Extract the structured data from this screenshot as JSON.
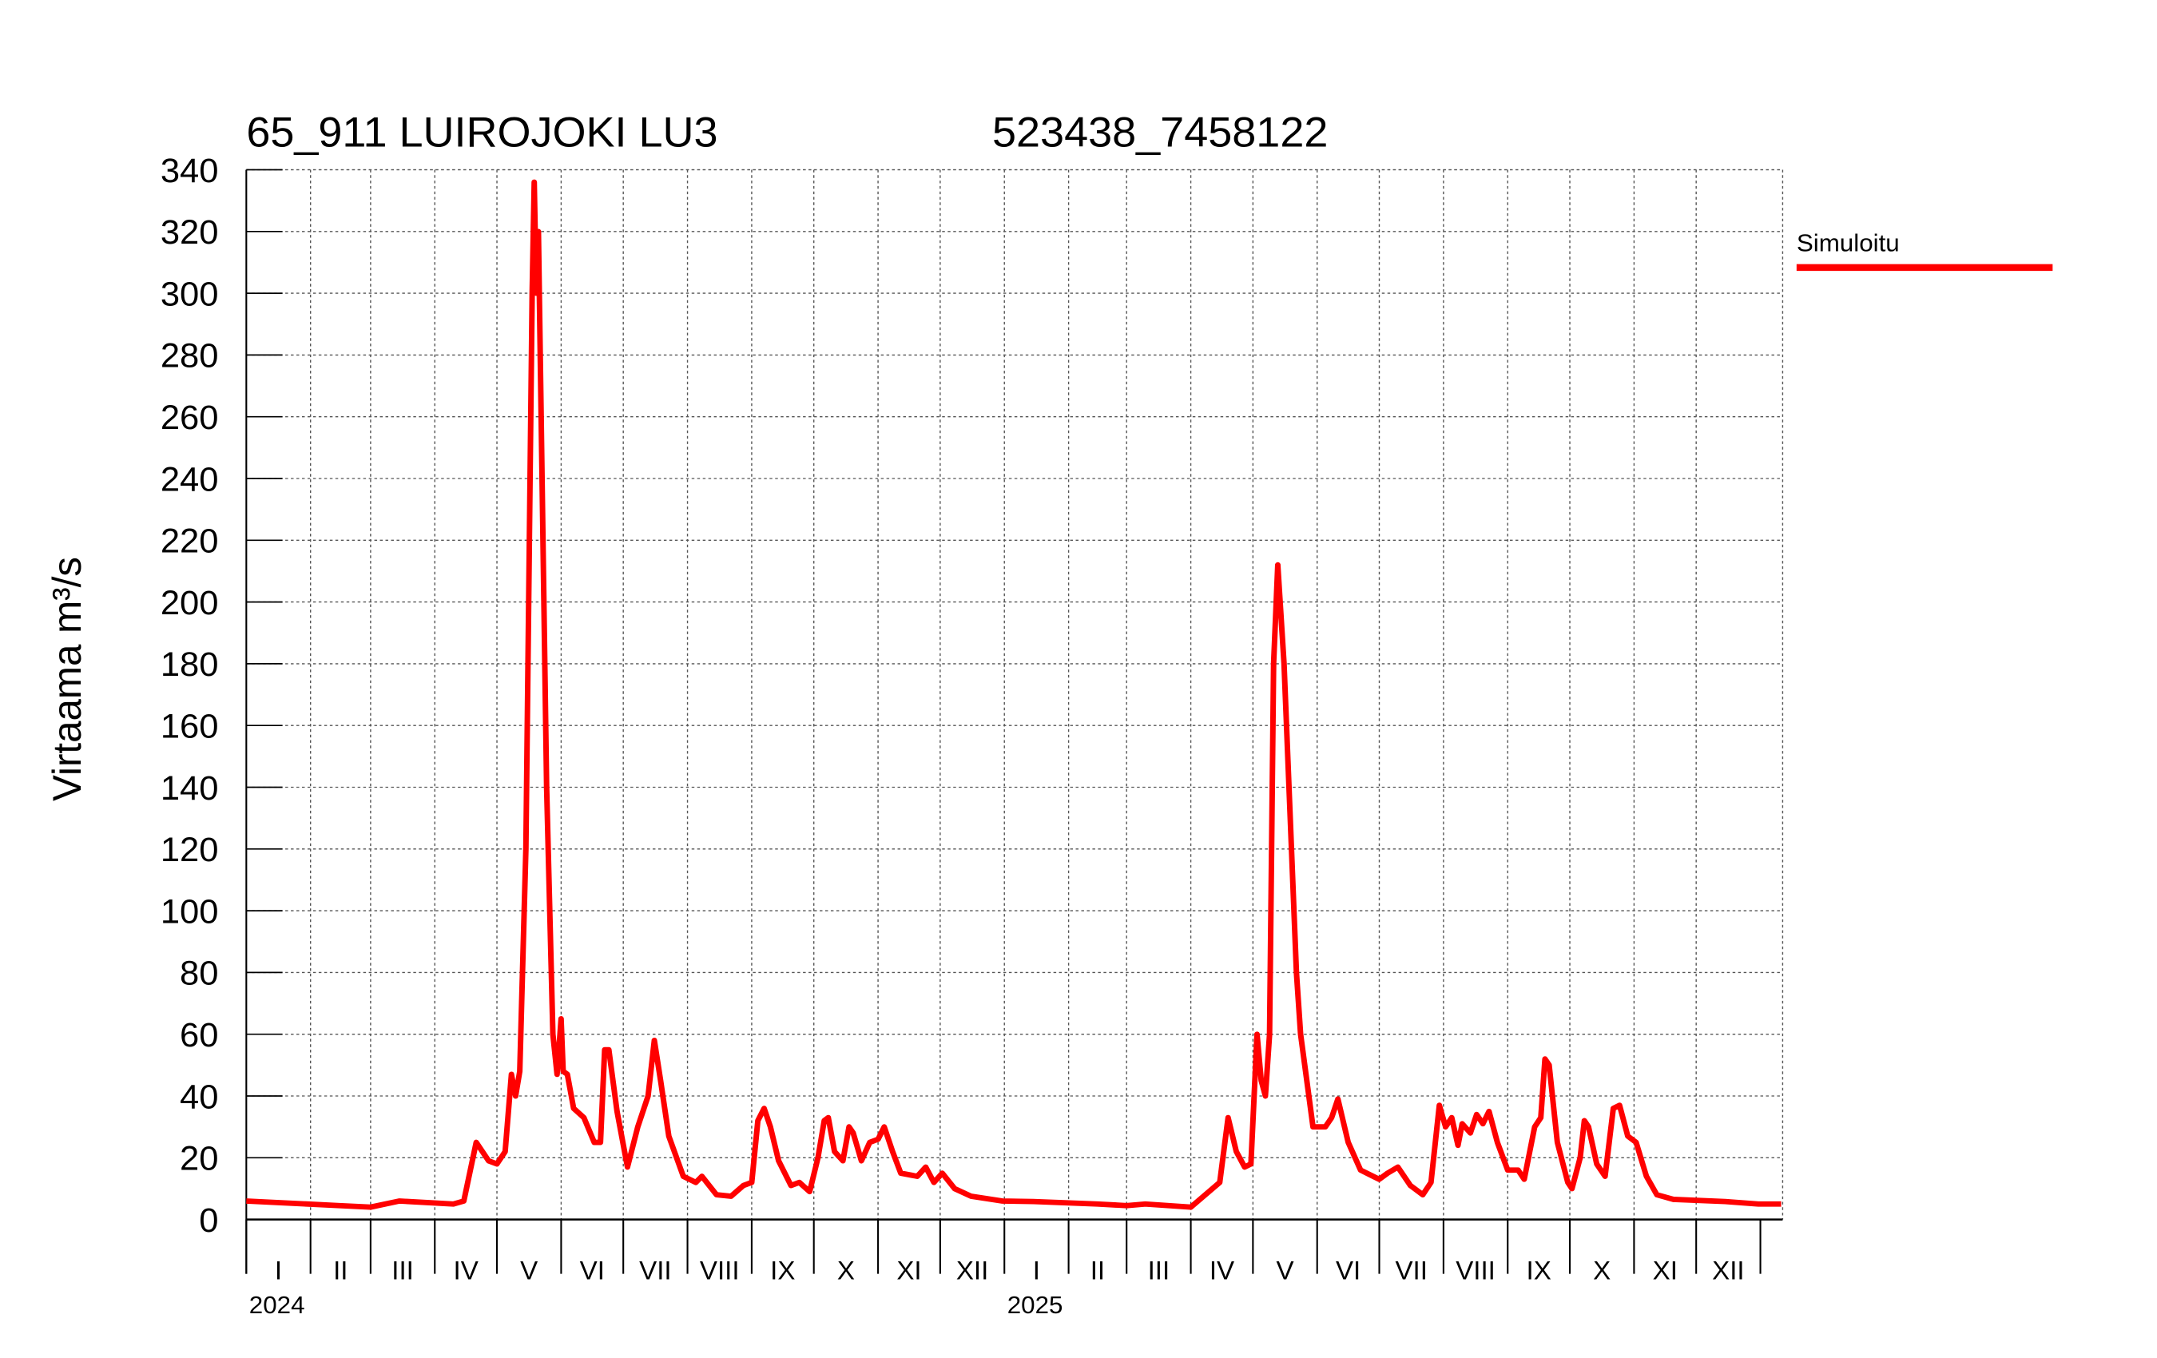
{
  "chart_data": {
    "type": "line",
    "title": "65_911 LUIROJOKI LU3",
    "subtitle": "523438_7458122",
    "ylabel": "Virtaama m³/s",
    "xlabel": "",
    "ylim": [
      0,
      340
    ],
    "xlim": [
      "2024-01-01",
      "2026-01-11"
    ],
    "yticks": [
      0,
      20,
      40,
      60,
      80,
      100,
      120,
      140,
      160,
      180,
      200,
      220,
      240,
      260,
      280,
      300,
      320,
      340
    ],
    "month_labels": [
      "I",
      "II",
      "III",
      "IV",
      "V",
      "VI",
      "VII",
      "VIII",
      "IX",
      "X",
      "XI",
      "XII"
    ],
    "year_labels": [
      "2024",
      "2025"
    ],
    "grid": true,
    "legend_position": "right",
    "series": [
      {
        "name": "Simuloitu",
        "color": "#ff0000",
        "points": [
          [
            "2024-01-01",
            6
          ],
          [
            "2024-02-15",
            4.5
          ],
          [
            "2024-03-01",
            4
          ],
          [
            "2024-03-15",
            6
          ],
          [
            "2024-04-10",
            5
          ],
          [
            "2024-04-15",
            6
          ],
          [
            "2024-04-21",
            25
          ],
          [
            "2024-04-27",
            19
          ],
          [
            "2024-05-01",
            18
          ],
          [
            "2024-05-05",
            22
          ],
          [
            "2024-05-08",
            47
          ],
          [
            "2024-05-10",
            40
          ],
          [
            "2024-05-12",
            48
          ],
          [
            "2024-05-15",
            120
          ],
          [
            "2024-05-18",
            300
          ],
          [
            "2024-05-19",
            336
          ],
          [
            "2024-05-20",
            300
          ],
          [
            "2024-05-21",
            320
          ],
          [
            "2024-05-25",
            140
          ],
          [
            "2024-05-28",
            60
          ],
          [
            "2024-05-30",
            47
          ],
          [
            "2024-06-01",
            65
          ],
          [
            "2024-06-02",
            48
          ],
          [
            "2024-06-04",
            47
          ],
          [
            "2024-06-07",
            36
          ],
          [
            "2024-06-12",
            33
          ],
          [
            "2024-06-17",
            25
          ],
          [
            "2024-06-20",
            25
          ],
          [
            "2024-06-22",
            55
          ],
          [
            "2024-06-24",
            55
          ],
          [
            "2024-06-28",
            35
          ],
          [
            "2024-07-03",
            17
          ],
          [
            "2024-07-08",
            30
          ],
          [
            "2024-07-13",
            40
          ],
          [
            "2024-07-16",
            58
          ],
          [
            "2024-07-19",
            45
          ],
          [
            "2024-07-23",
            27
          ],
          [
            "2024-07-30",
            14
          ],
          [
            "2024-08-05",
            12
          ],
          [
            "2024-08-08",
            14
          ],
          [
            "2024-08-15",
            8
          ],
          [
            "2024-08-22",
            7.5
          ],
          [
            "2024-08-28",
            11
          ],
          [
            "2024-09-01",
            12
          ],
          [
            "2024-09-04",
            32
          ],
          [
            "2024-09-07",
            36
          ],
          [
            "2024-09-10",
            30
          ],
          [
            "2024-09-14",
            19
          ],
          [
            "2024-09-20",
            11
          ],
          [
            "2024-09-24",
            12
          ],
          [
            "2024-09-29",
            9
          ],
          [
            "2024-10-03",
            20
          ],
          [
            "2024-10-06",
            32
          ],
          [
            "2024-10-08",
            33
          ],
          [
            "2024-10-11",
            22
          ],
          [
            "2024-10-15",
            19
          ],
          [
            "2024-10-18",
            30
          ],
          [
            "2024-10-20",
            28
          ],
          [
            "2024-10-24",
            19
          ],
          [
            "2024-10-28",
            25
          ],
          [
            "2024-11-01",
            26
          ],
          [
            "2024-11-04",
            30
          ],
          [
            "2024-11-08",
            22
          ],
          [
            "2024-11-12",
            15
          ],
          [
            "2024-11-20",
            14
          ],
          [
            "2024-11-24",
            17
          ],
          [
            "2024-11-28",
            12
          ],
          [
            "2024-12-02",
            15
          ],
          [
            "2024-12-08",
            10
          ],
          [
            "2024-12-16",
            7.5
          ],
          [
            "2024-12-31",
            6
          ],
          [
            "2025-01-15",
            5.8
          ],
          [
            "2025-02-15",
            5
          ],
          [
            "2025-03-01",
            4.5
          ],
          [
            "2025-03-10",
            5
          ],
          [
            "2025-04-01",
            4
          ],
          [
            "2025-04-08",
            8
          ],
          [
            "2025-04-15",
            12
          ],
          [
            "2025-04-19",
            33
          ],
          [
            "2025-04-23",
            22
          ],
          [
            "2025-04-27",
            17
          ],
          [
            "2025-04-30",
            18
          ],
          [
            "2025-05-03",
            60
          ],
          [
            "2025-05-05",
            45
          ],
          [
            "2025-05-07",
            40
          ],
          [
            "2025-05-09",
            60
          ],
          [
            "2025-05-11",
            180
          ],
          [
            "2025-05-13",
            212
          ],
          [
            "2025-05-16",
            180
          ],
          [
            "2025-05-22",
            80
          ],
          [
            "2025-05-24",
            60
          ],
          [
            "2025-05-30",
            30
          ],
          [
            "2025-06-05",
            30
          ],
          [
            "2025-06-08",
            33
          ],
          [
            "2025-06-11",
            39
          ],
          [
            "2025-06-16",
            25
          ],
          [
            "2025-06-22",
            16
          ],
          [
            "2025-06-28",
            14
          ],
          [
            "2025-07-01",
            13
          ],
          [
            "2025-07-05",
            15
          ],
          [
            "2025-07-10",
            17
          ],
          [
            "2025-07-16",
            11
          ],
          [
            "2025-07-22",
            8
          ],
          [
            "2025-07-26",
            12
          ],
          [
            "2025-07-30",
            37
          ],
          [
            "2025-08-02",
            30
          ],
          [
            "2025-08-05",
            33
          ],
          [
            "2025-08-08",
            24
          ],
          [
            "2025-08-10",
            31
          ],
          [
            "2025-08-14",
            28
          ],
          [
            "2025-08-17",
            34
          ],
          [
            "2025-08-20",
            31
          ],
          [
            "2025-08-23",
            35
          ],
          [
            "2025-08-27",
            25
          ],
          [
            "2025-09-01",
            16
          ],
          [
            "2025-09-06",
            16
          ],
          [
            "2025-09-09",
            13
          ],
          [
            "2025-09-14",
            30
          ],
          [
            "2025-09-17",
            33
          ],
          [
            "2025-09-19",
            52
          ],
          [
            "2025-09-21",
            50
          ],
          [
            "2025-09-25",
            25
          ],
          [
            "2025-09-30",
            12
          ],
          [
            "2025-10-02",
            10
          ],
          [
            "2025-10-06",
            20
          ],
          [
            "2025-10-08",
            32
          ],
          [
            "2025-10-10",
            30
          ],
          [
            "2025-10-14",
            18
          ],
          [
            "2025-10-18",
            14
          ],
          [
            "2025-10-22",
            36
          ],
          [
            "2025-10-25",
            37
          ],
          [
            "2025-10-29",
            27
          ],
          [
            "2025-11-02",
            25
          ],
          [
            "2025-11-07",
            14
          ],
          [
            "2025-11-12",
            8
          ],
          [
            "2025-11-20",
            6.5
          ],
          [
            "2025-12-15",
            5.8
          ],
          [
            "2025-12-31",
            5
          ],
          [
            "2026-01-11",
            5
          ]
        ]
      }
    ]
  }
}
